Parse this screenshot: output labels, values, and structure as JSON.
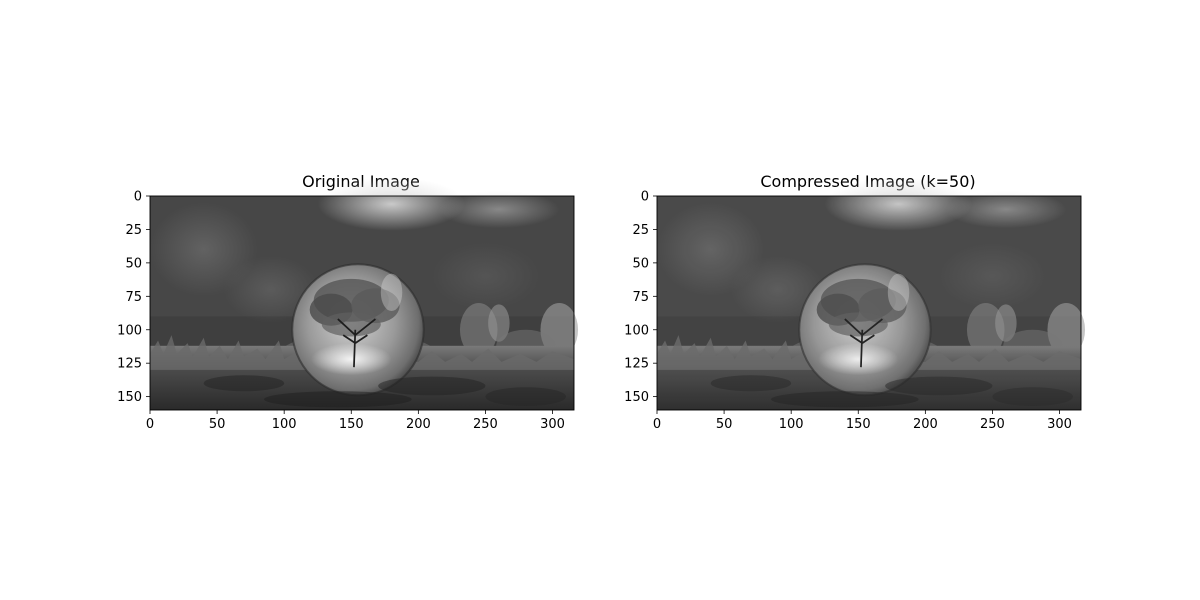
{
  "chart_data": [
    {
      "type": "heatmap",
      "title": "Original Image",
      "colormap": "gray",
      "xlim": [
        0,
        316
      ],
      "ylim": [
        160,
        0
      ],
      "xticks": [
        0,
        50,
        100,
        150,
        200,
        250,
        300
      ],
      "yticks": [
        0,
        25,
        50,
        75,
        100,
        125,
        150
      ]
    },
    {
      "type": "heatmap",
      "title": "Compressed Image (k=50)",
      "colormap": "gray",
      "xlim": [
        0,
        316
      ],
      "ylim": [
        160,
        0
      ],
      "xticks": [
        0,
        50,
        100,
        150,
        200,
        250,
        300
      ],
      "yticks": [
        0,
        25,
        50,
        75,
        100,
        125,
        150
      ]
    }
  ]
}
